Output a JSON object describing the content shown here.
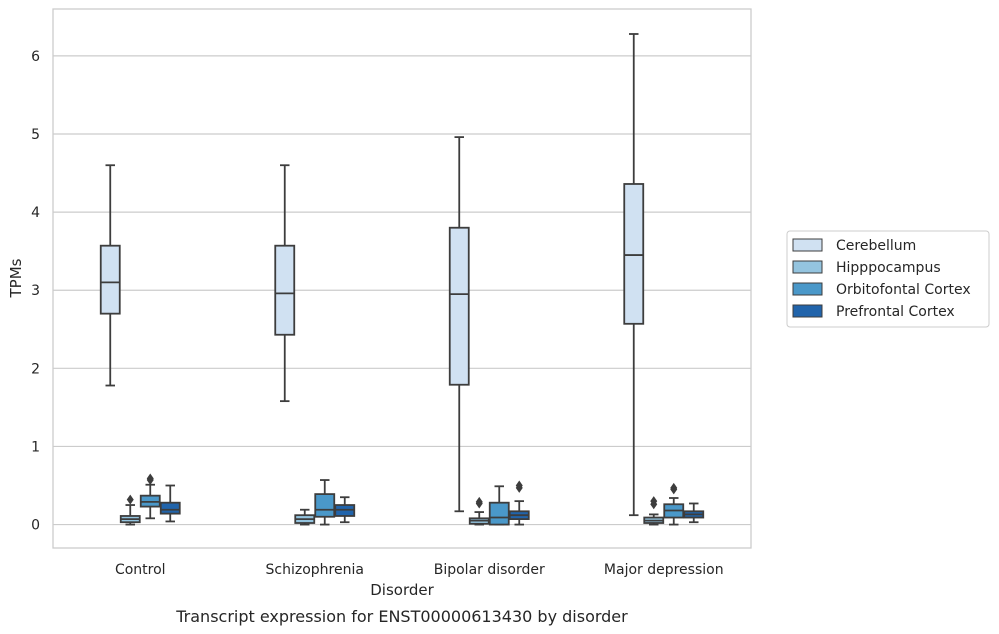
{
  "caption": "Transcript expression for ENST00000613430 by disorder",
  "chart_data": {
    "type": "box",
    "xlabel": "Disorder",
    "ylabel": "TPMs",
    "ylim": [
      -0.3,
      6.6
    ],
    "yticks": [
      0,
      1,
      2,
      3,
      4,
      5,
      6
    ],
    "grid": true,
    "legend_position": "right",
    "categories": [
      "Control",
      "Schizophrenia",
      "Bipolar disorder",
      "Major depression"
    ],
    "series": [
      {
        "name": "Cerebellum",
        "color": "#d0e1f2",
        "boxes": [
          {
            "whislo": 1.78,
            "q1": 2.7,
            "med": 3.1,
            "q3": 3.57,
            "whishi": 4.6,
            "fliers": []
          },
          {
            "whislo": 1.58,
            "q1": 2.43,
            "med": 2.96,
            "q3": 3.57,
            "whishi": 4.6,
            "fliers": []
          },
          {
            "whislo": 0.17,
            "q1": 1.79,
            "med": 2.95,
            "q3": 3.8,
            "whishi": 4.96,
            "fliers": []
          },
          {
            "whislo": 0.12,
            "q1": 2.57,
            "med": 3.45,
            "q3": 4.36,
            "whishi": 6.28,
            "fliers": []
          }
        ]
      },
      {
        "name": "Hipppocampus",
        "color": "#94c4df",
        "boxes": [
          {
            "whislo": 0.0,
            "q1": 0.03,
            "med": 0.07,
            "q3": 0.11,
            "whishi": 0.25,
            "fliers": [
              0.32
            ]
          },
          {
            "whislo": 0.0,
            "q1": 0.02,
            "med": 0.07,
            "q3": 0.12,
            "whishi": 0.19,
            "fliers": []
          },
          {
            "whislo": 0.0,
            "q1": 0.01,
            "med": 0.05,
            "q3": 0.08,
            "whishi": 0.16,
            "fliers": [
              0.27,
              0.29
            ]
          },
          {
            "whislo": 0.0,
            "q1": 0.02,
            "med": 0.05,
            "q3": 0.09,
            "whishi": 0.13,
            "fliers": [
              0.26,
              0.3
            ]
          }
        ]
      },
      {
        "name": "Orbitofontal Cortex",
        "color": "#4a98c9",
        "boxes": [
          {
            "whislo": 0.08,
            "q1": 0.23,
            "med": 0.29,
            "q3": 0.37,
            "whishi": 0.51,
            "fliers": [
              0.57,
              0.59
            ]
          },
          {
            "whislo": 0.0,
            "q1": 0.1,
            "med": 0.19,
            "q3": 0.39,
            "whishi": 0.57,
            "fliers": []
          },
          {
            "whislo": 0.0,
            "q1": 0.0,
            "med": 0.09,
            "q3": 0.28,
            "whishi": 0.49,
            "fliers": []
          },
          {
            "whislo": 0.0,
            "q1": 0.09,
            "med": 0.18,
            "q3": 0.26,
            "whishi": 0.34,
            "fliers": [
              0.45,
              0.47
            ]
          }
        ]
      },
      {
        "name": "Prefrontal Cortex",
        "color": "#2164ab",
        "boxes": [
          {
            "whislo": 0.04,
            "q1": 0.14,
            "med": 0.19,
            "q3": 0.28,
            "whishi": 0.5,
            "fliers": []
          },
          {
            "whislo": 0.03,
            "q1": 0.11,
            "med": 0.19,
            "q3": 0.25,
            "whishi": 0.35,
            "fliers": []
          },
          {
            "whislo": 0.0,
            "q1": 0.07,
            "med": 0.12,
            "q3": 0.17,
            "whishi": 0.3,
            "fliers": [
              0.47,
              0.5
            ]
          },
          {
            "whislo": 0.03,
            "q1": 0.09,
            "med": 0.13,
            "q3": 0.17,
            "whishi": 0.27,
            "fliers": []
          }
        ]
      }
    ]
  }
}
